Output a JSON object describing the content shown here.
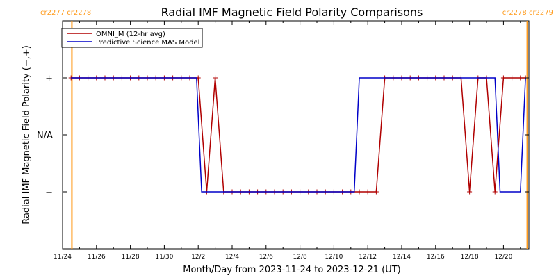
{
  "chart_data": {
    "type": "line",
    "title": "Radial IMF Magnetic Field Polarity Comparisons",
    "xlabel": "Month/Day from 2023-11-24 to 2023-12-21 (UT)",
    "ylabel": "Radial IMF Magnetic Field Polarity (−,+)",
    "x_start": "2023-11-24",
    "x_range_days": [
      0,
      27.5
    ],
    "x_ticks": [
      {
        "day": 0,
        "label": "11/24"
      },
      {
        "day": 2,
        "label": "11/26"
      },
      {
        "day": 4,
        "label": "11/28"
      },
      {
        "day": 6,
        "label": "11/30"
      },
      {
        "day": 8,
        "label": "12/2"
      },
      {
        "day": 10,
        "label": "12/4"
      },
      {
        "day": 12,
        "label": "12/6"
      },
      {
        "day": 14,
        "label": "12/8"
      },
      {
        "day": 16,
        "label": "12/10"
      },
      {
        "day": 18,
        "label": "12/12"
      },
      {
        "day": 20,
        "label": "12/14"
      },
      {
        "day": 22,
        "label": "12/16"
      },
      {
        "day": 24,
        "label": "12/18"
      },
      {
        "day": 26,
        "label": "12/20"
      }
    ],
    "y_range": [
      -2,
      2
    ],
    "y_ticks": [
      {
        "value": 1,
        "label": "+"
      },
      {
        "value": 0,
        "label": "N/A"
      },
      {
        "value": -1,
        "label": "−"
      }
    ],
    "carrington": [
      {
        "day": 0.55,
        "label": "cr2277 cr2278",
        "align": "left"
      },
      {
        "day": 27.4,
        "label": "cr2278 cr2279",
        "align": "right"
      }
    ],
    "legend": {
      "placement": "top-left"
    },
    "series": [
      {
        "name": "OMNI_M (12-hr avg)",
        "color": "#b00000",
        "markers": true,
        "x": [
          0.5,
          1.0,
          1.5,
          2.0,
          2.5,
          3.0,
          3.5,
          4.0,
          4.5,
          5.0,
          5.5,
          6.0,
          6.5,
          7.0,
          7.5,
          8.0,
          8.5,
          9.0,
          9.5,
          10.0,
          10.5,
          11.0,
          11.5,
          12.0,
          12.5,
          13.0,
          13.5,
          14.0,
          14.5,
          15.0,
          15.5,
          16.0,
          16.5,
          17.0,
          17.5,
          18.0,
          18.5,
          19.0,
          19.5,
          20.0,
          20.5,
          21.0,
          21.5,
          22.0,
          22.5,
          23.0,
          23.5,
          24.0,
          24.5,
          25.0,
          25.5,
          26.0,
          26.5,
          27.0,
          27.3
        ],
        "y": [
          1,
          1,
          1,
          1,
          1,
          1,
          1,
          1,
          1,
          1,
          1,
          1,
          1,
          1,
          1,
          1,
          -1,
          1,
          -1,
          -1,
          -1,
          -1,
          -1,
          -1,
          -1,
          -1,
          -1,
          -1,
          -1,
          -1,
          -1,
          -1,
          -1,
          -1,
          -1,
          -1,
          -1,
          1,
          1,
          1,
          1,
          1,
          1,
          1,
          1,
          1,
          1,
          -1,
          1,
          1,
          -1,
          1,
          1,
          1,
          1
        ]
      },
      {
        "name": "Predictive Science MAS Model",
        "color": "#0000c8",
        "markers": false,
        "x": [
          0.5,
          7.9,
          8.2,
          17.2,
          17.5,
          25.5,
          25.8,
          27.0,
          27.3
        ],
        "y": [
          1,
          1,
          -1,
          -1,
          1,
          1,
          -1,
          -1,
          1
        ]
      }
    ]
  }
}
